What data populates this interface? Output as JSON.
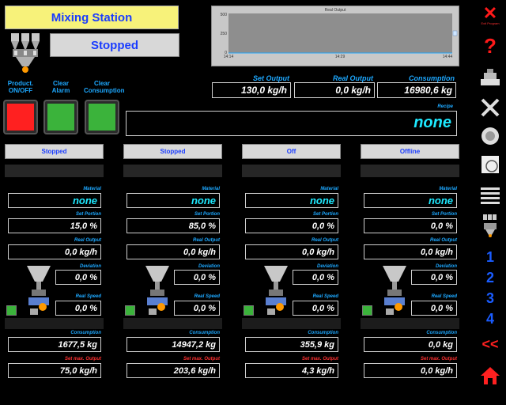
{
  "header": {
    "title": "Mixing Station",
    "status": "Stopped"
  },
  "controls": {
    "product_label": "Product. ON/OFF",
    "clear_alarm_label": "Clear Alarm",
    "clear_consumption_label": "Clear Consumption",
    "product_color": "#ff2020",
    "alarm_color": "#3bb33b",
    "consumption_color": "#3bb33b"
  },
  "chart": {
    "title": "Real Output",
    "y_ticks": [
      "500",
      "250",
      "0"
    ],
    "x_ticks": [
      "14:14",
      "14:29",
      "14:44"
    ]
  },
  "chart_data": {
    "type": "line",
    "title": "Real Output",
    "x": [
      "14:14",
      "14:29",
      "14:44"
    ],
    "ylim": [
      0,
      500
    ],
    "series": [
      {
        "values": [
          0,
          0,
          0
        ]
      }
    ]
  },
  "totals": {
    "set_output_label": "Set Output",
    "set_output": "130,0 kg/h",
    "real_output_label": "Real Output",
    "real_output": "0,0 kg/h",
    "consumption_label": "Consumption",
    "consumption": "16980,6 kg",
    "recipe_label": "Recipe",
    "recipe": "none"
  },
  "labels": {
    "material": "Material",
    "set_portion": "Set Portion",
    "real_output": "Real Output",
    "deviation": "Deviation",
    "real_speed": "Real Speed",
    "consumption": "Consumption",
    "set_max_output": "Set max. Output"
  },
  "columns": [
    {
      "status": "Stopped",
      "material": "none",
      "set_portion": "15,0 %",
      "real_output": "0,0 kg/h",
      "deviation": "0,0 %",
      "real_speed": "0,0 %",
      "consumption": "1677,5 kg",
      "set_max_output": "75,0 kg/h"
    },
    {
      "status": "Stopped",
      "material": "none",
      "set_portion": "85,0 %",
      "real_output": "0,0 kg/h",
      "deviation": "0,0 %",
      "real_speed": "0,0 %",
      "consumption": "14947,2 kg",
      "set_max_output": "203,6 kg/h"
    },
    {
      "status": "Off",
      "material": "none",
      "set_portion": "0,0 %",
      "real_output": "0,0 kg/h",
      "deviation": "0,0 %",
      "real_speed": "0,0 %",
      "consumption": "355,9 kg",
      "set_max_output": "4,3 kg/h"
    },
    {
      "status": "Offline",
      "material": "none",
      "set_portion": "0,0 %",
      "real_output": "0,0 kg/h",
      "deviation": "0,0 %",
      "real_speed": "0,0 %",
      "consumption": "0,0 kg",
      "set_max_output": "0,0 kg/h"
    }
  ],
  "sidebar": {
    "exit_label": "Exit Program",
    "pages": [
      "1",
      "2",
      "3",
      "4"
    ],
    "back_label": "<<"
  }
}
